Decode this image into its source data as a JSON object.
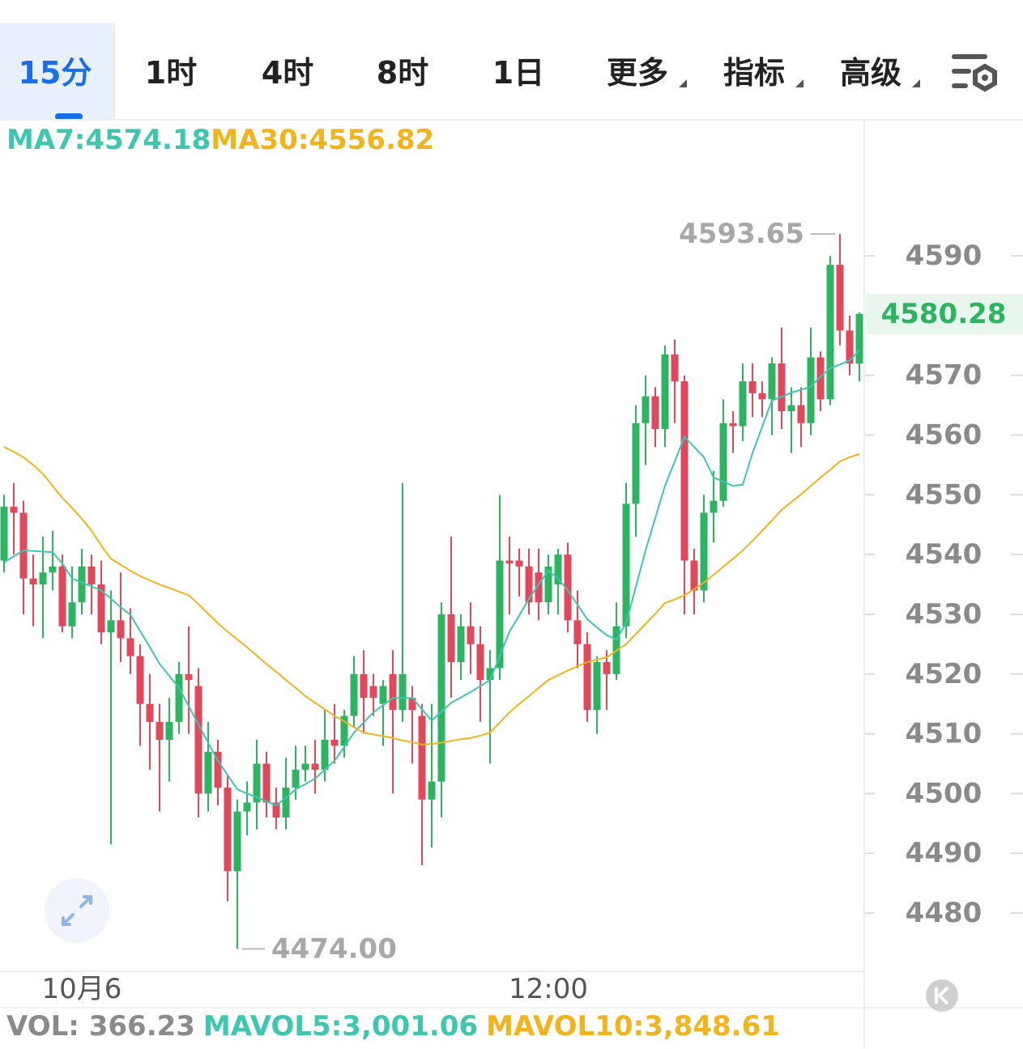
{
  "tabs": [
    "15分",
    "1时",
    "4时",
    "8时",
    "1日",
    "更多",
    "指标",
    "高级"
  ],
  "chart_data": {
    "type": "candlestick",
    "categories": [
      null,
      null,
      null,
      null,
      null,
      null,
      null,
      null,
      "10月6",
      null,
      null,
      null,
      null,
      null,
      null,
      null,
      null,
      null,
      null,
      null,
      null,
      null,
      null,
      null,
      null,
      null,
      null,
      null,
      null,
      null,
      null,
      null,
      null,
      null,
      null,
      null,
      null,
      null,
      null,
      null,
      null,
      null,
      null,
      null,
      null,
      null,
      null,
      null,
      null,
      null,
      null,
      null,
      null,
      null,
      null,
      null,
      "12:00",
      null,
      null,
      null,
      null,
      null,
      null,
      null,
      null,
      null,
      null,
      null,
      null,
      null,
      null,
      null,
      null,
      null,
      null,
      null,
      null,
      null,
      null,
      null,
      null,
      null,
      null,
      null,
      null,
      null,
      null,
      null,
      null
    ],
    "open": [
      4539,
      4548,
      4547,
      4536,
      4535,
      4537,
      4538,
      4528,
      4532,
      4538,
      4535,
      4527,
      4529,
      4526,
      4523,
      4515,
      4512,
      4509,
      4512,
      4520,
      4518,
      4500,
      4507,
      4501,
      4487,
      4497,
      4498.5,
      4505,
      4498.5,
      4496,
      4501,
      4504,
      4505,
      4504,
      4509,
      4508,
      4513,
      4520,
      4518,
      4515,
      4520,
      4514,
      4516,
      4513,
      4499,
      4502,
      4530,
      4522,
      4528,
      4525,
      4519,
      4521,
      4539,
      4539,
      4538,
      4537,
      4532,
      4535,
      4540,
      4529,
      4525,
      4514,
      4522,
      4520,
      4528,
      4548.5,
      4562,
      4566.5,
      4561,
      4573.5,
      4569,
      4539,
      4534,
      4547,
      4549,
      4562,
      4561.5,
      4569,
      4567,
      4566,
      4572,
      4564,
      4565,
      4562,
      4573,
      4566,
      4588.5,
      4577.5,
      4572
    ],
    "high": [
      4550,
      4552,
      4549,
      4540,
      4543,
      4544,
      4540,
      4538,
      4541,
      4540,
      4539,
      4534,
      4537,
      4531,
      4525,
      4520,
      4515,
      4516,
      4522,
      4528,
      4521,
      4512,
      4509,
      4503,
      4499,
      4502,
      4509,
      4507,
      4501,
      4506,
      4508,
      4508,
      4509,
      4514,
      4515,
      4514,
      4523,
      4524,
      4520,
      4519,
      4524,
      4552,
      4518,
      4515,
      4515,
      4532,
      4543,
      4530,
      4532,
      4528,
      4524,
      4550,
      4543,
      4541,
      4541,
      4541,
      4540,
      4541,
      4542,
      4534,
      4527,
      4523,
      4524,
      4532,
      4552,
      4565,
      4570,
      4568,
      4575,
      4576,
      4570,
      4541,
      4550,
      4554,
      4566,
      4564,
      4572,
      4572,
      4569,
      4573,
      4578,
      4568,
      4568,
      4578,
      4574,
      4590,
      4593.65,
      4580,
      4580.5
    ],
    "low": [
      4537,
      4540,
      4530,
      4528,
      4526,
      4534,
      4527,
      4526,
      4530,
      4530,
      4525,
      4491.5,
      4522,
      4520,
      4508,
      4504,
      4497,
      4502,
      4510,
      4510,
      4496,
      4497,
      4498,
      4482,
      4474,
      4493,
      4494,
      4496,
      4494,
      4494,
      4499,
      4502,
      4500,
      4502,
      4505,
      4506,
      4511,
      4510,
      4513,
      4508,
      4500,
      4512,
      4505,
      4488,
      4491,
      4496,
      4516,
      4519,
      4520,
      4512,
      4505,
      4519,
      4530,
      4533,
      4530,
      4529,
      4530,
      4530,
      4527,
      4521,
      4512,
      4510,
      4514,
      4519,
      4526,
      4543,
      4555,
      4558,
      4558,
      4562,
      4530,
      4530,
      4532,
      4542,
      4548,
      4557,
      4559,
      4563,
      4563,
      4560,
      4561,
      4557,
      4558,
      4560,
      4564,
      4565,
      4575,
      4570,
      4569
    ],
    "close": [
      4548,
      4547,
      4536,
      4535,
      4537,
      4538,
      4528,
      4532,
      4538,
      4535,
      4527,
      4529,
      4526,
      4523,
      4515,
      4512,
      4509,
      4512,
      4520,
      4519,
      4500,
      4507,
      4501,
      4487,
      4497,
      4498.5,
      4505,
      4498.5,
      4496,
      4501,
      4504,
      4505,
      4504,
      4509,
      4508,
      4513,
      4520,
      4516,
      4516,
      4518,
      4514,
      4520,
      4514,
      4499,
      4502,
      4530,
      4522,
      4528,
      4525,
      4519,
      4521,
      4539,
      4538.5,
      4538,
      4532,
      4532,
      4538,
      4540,
      4529,
      4525,
      4514,
      4522,
      4520,
      4528,
      4548.5,
      4562,
      4566.5,
      4561,
      4573.5,
      4569,
      4539,
      4534,
      4547,
      4549,
      4562,
      4561.5,
      4569,
      4567,
      4566,
      4572,
      4564,
      4565,
      4562,
      4573,
      4566,
      4588.5,
      4577.5,
      4572,
      4580.28
    ],
    "up_color": "#2db460",
    "down_color": "#e2475b",
    "series": [
      {
        "label": "MA7:4574.18",
        "color": "#3ec7b0",
        "values": [
          4538.7,
          4539.7,
          4540.7,
          4540.6,
          4540.5,
          4540.4,
          4538.5,
          4536,
          4535.3,
          4534.7,
          4534,
          4532.6,
          4531.2,
          4529.9,
          4527.2,
          4524.5,
          4521.7,
          4519.7,
          4517.7,
          4514.6,
          4511.6,
          4508.5,
          4505.5,
          4503.1,
          4500.7,
          4500,
          4499.4,
          4498.7,
          4498,
          4499.3,
          4500.7,
          4501.6,
          4502.5,
          4504,
          4505.5,
          4507.8,
          4510.2,
          4511.9,
          4513.6,
          4514.8,
          4516,
          4516,
          4516,
          4514.1,
          4512.2,
          4513.7,
          4515.2,
          4516.1,
          4517,
          4518,
          4519,
          4523,
          4527.1,
          4529.8,
          4532.6,
          4535,
          4537.3,
          4536,
          4534,
          4531.6,
          4529.2,
          4527.8,
          4526.5,
          4525.8,
          4528.5,
          4534.6,
          4540.7,
          4546.1,
          4551.5,
          4555.6,
          4559.7,
          4558,
          4556.3,
          4552.9,
          4552.2,
          4551.5,
          4551.7,
          4557,
          4561.4,
          4565.8,
          4566.4,
          4567.1,
          4567.6,
          4568.1,
          4569.8,
          4571.2,
          4571.8,
          4572.5,
          4574.18
        ]
      },
      {
        "label": "MA30:4556.82",
        "color": "#f2b41c",
        "values": [
          4558,
          4557.2,
          4556.3,
          4555,
          4553.5,
          4551.5,
          4549.5,
          4547.8,
          4546,
          4544,
          4541.5,
          4539.3,
          4538.3,
          4537.3,
          4536.4,
          4535.7,
          4535,
          4534.4,
          4533.8,
          4533.2,
          4531.7,
          4530.1,
          4528.5,
          4527.1,
          4525.8,
          4524.5,
          4523.1,
          4521.7,
          4520.4,
          4519,
          4517.7,
          4516.3,
          4515.2,
          4514.1,
          4513,
          4512.1,
          4511.1,
          4510.2,
          4509.9,
          4509.6,
          4509.3,
          4508.9,
          4508.6,
          4508.2,
          4508.3,
          4508.5,
          4508.8,
          4509.1,
          4509.3,
          4509.7,
          4510.2,
          4511.9,
          4513.6,
          4515,
          4516.3,
          4517.7,
          4519,
          4519.8,
          4520.6,
          4521.3,
          4522,
          4522.4,
          4522.8,
          4523.9,
          4525,
          4526.7,
          4528.4,
          4530.1,
          4531.9,
          4532.5,
          4533.2,
          4534.2,
          4535.3,
          4536.6,
          4538,
          4539.3,
          4540.7,
          4542.3,
          4544,
          4545.7,
          4547.5,
          4548.8,
          4550.1,
          4551.5,
          4552.9,
          4554.2,
          4555.6,
          4556.3,
          4556.82
        ]
      }
    ],
    "ylim": [
      4470.25,
      4612.5
    ],
    "yticks": [
      4590,
      4580,
      4570,
      4560,
      4550,
      4540,
      4530,
      4520,
      4510,
      4500,
      4490,
      4480
    ],
    "last_price": 4580.28,
    "high_label": 4593.65,
    "low_label": {
      "value": 4474,
      "label": "4474.00"
    },
    "volume_legend": [
      {
        "label": "VOL: 366.23",
        "color": "#8a8a8a"
      },
      {
        "label": "MAVOL5:3,001.06",
        "color": "#3ec7b0"
      },
      {
        "label": "MAVOL10:3,848.61",
        "color": "#f2b41c"
      }
    ]
  }
}
